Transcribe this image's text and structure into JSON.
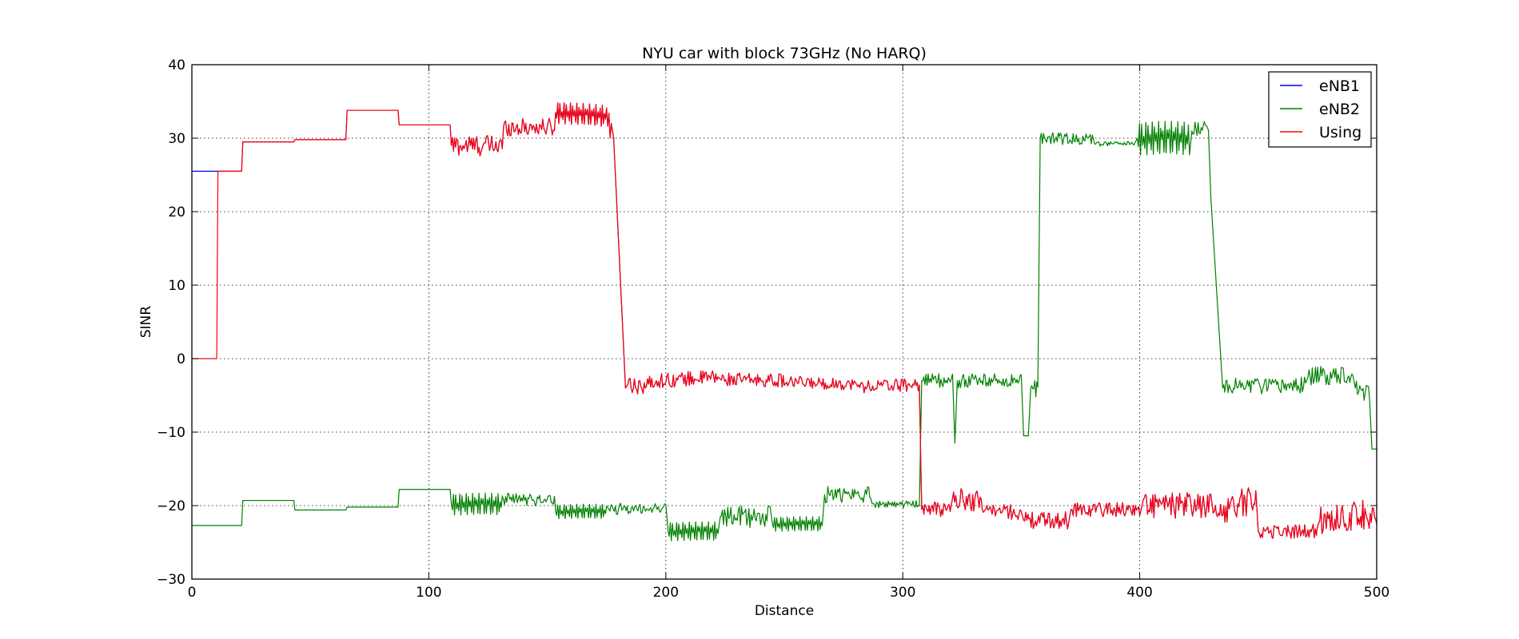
{
  "chart_data": {
    "type": "line",
    "title": "NYU car with block 73GHz (No HARQ)",
    "xlabel": "Distance",
    "ylabel": "SINR",
    "xlim": [
      0,
      500
    ],
    "ylim": [
      -30,
      40
    ],
    "xticks": [
      0,
      100,
      200,
      300,
      400,
      500
    ],
    "yticks": [
      -30,
      -20,
      -10,
      0,
      10,
      20,
      30,
      40
    ],
    "grid": true,
    "legend_position": "top-right",
    "series": [
      {
        "name": "eNB1",
        "color": "#0000ff",
        "segments": [
          [
            0,
            25.5,
            "flat",
            0
          ],
          [
            10.5,
            25.5,
            "flat",
            0
          ],
          [
            21,
            25.5,
            "flat",
            0
          ],
          [
            21.5,
            29.5,
            "flat",
            0
          ],
          [
            43,
            29.5,
            "flat",
            0
          ],
          [
            43.5,
            29.8,
            "flat",
            0
          ],
          [
            65,
            29.8,
            "flat",
            0
          ],
          [
            65.5,
            33.8,
            "flat",
            0
          ],
          [
            87,
            33.8,
            "flat",
            0
          ],
          [
            87.5,
            31.8,
            "flat",
            0
          ],
          [
            109,
            31.8,
            "flat",
            0
          ],
          [
            109.5,
            29,
            "noise",
            1.5
          ],
          [
            131,
            29,
            "noise",
            1.5
          ],
          [
            131.5,
            31.5,
            "noise",
            1.2
          ],
          [
            153,
            31.5,
            "noise",
            1.2
          ],
          [
            153.5,
            33.5,
            "osc",
            1.5
          ],
          [
            175,
            33,
            "osc",
            1.5
          ],
          [
            177,
            31,
            "noise",
            1.2
          ],
          [
            178,
            30,
            "flat",
            0
          ],
          [
            183,
            -4,
            "flat",
            0
          ],
          [
            184,
            -3.5,
            "noise",
            1.3
          ],
          [
            195,
            -3.5,
            "noise",
            1.3
          ],
          [
            196,
            -3,
            "noise",
            1.0
          ],
          [
            222,
            -2.5,
            "noise",
            1.0
          ],
          [
            223,
            -2.8,
            "noise",
            0.9
          ],
          [
            250,
            -3,
            "noise",
            0.9
          ],
          [
            251,
            -3.2,
            "noise",
            0.8
          ],
          [
            280,
            -3.5,
            "noise",
            0.8
          ],
          [
            281,
            -3.8,
            "noise",
            0.9
          ],
          [
            307,
            -3.5,
            "noise",
            0.9
          ],
          [
            308,
            -20.5,
            "noise",
            1.0
          ],
          [
            320,
            -20.5,
            "noise",
            1.0
          ],
          [
            321,
            -19,
            "noise",
            1.5
          ],
          [
            334,
            -19.5,
            "noise",
            1.2
          ],
          [
            335,
            -20.5,
            "noise",
            1.0
          ],
          [
            350,
            -21,
            "noise",
            1.0
          ],
          [
            351,
            -22,
            "noise",
            1.2
          ],
          [
            370,
            -22,
            "noise",
            1.2
          ],
          [
            371,
            -20.5,
            "noise",
            1.0
          ],
          [
            400,
            -20.5,
            "noise",
            1.0
          ],
          [
            401,
            -20,
            "noise",
            1.8
          ],
          [
            430,
            -20,
            "noise",
            1.5
          ],
          [
            431,
            -21,
            "noise",
            2.0
          ],
          [
            449,
            -19,
            "noise",
            2.0
          ],
          [
            450,
            -23.5,
            "noise",
            1.0
          ],
          [
            475,
            -23.5,
            "noise",
            1.0
          ],
          [
            476,
            -22,
            "noise",
            2.0
          ],
          [
            500,
            -21,
            "noise",
            1.2
          ]
        ]
      },
      {
        "name": "eNB2",
        "color": "#008000",
        "segments": [
          [
            0,
            -22.7,
            "flat",
            0
          ],
          [
            21,
            -22.7,
            "flat",
            0
          ],
          [
            21.5,
            -19.3,
            "flat",
            0
          ],
          [
            43,
            -19.3,
            "flat",
            0
          ],
          [
            43.5,
            -20.6,
            "flat",
            0
          ],
          [
            65,
            -20.6,
            "flat",
            0
          ],
          [
            65.5,
            -20.2,
            "flat",
            0
          ],
          [
            87,
            -20.2,
            "flat",
            0
          ],
          [
            87.5,
            -17.8,
            "flat",
            0
          ],
          [
            109,
            -17.8,
            "flat",
            0
          ],
          [
            109.5,
            -19.8,
            "osc",
            1.5
          ],
          [
            131,
            -19.8,
            "osc",
            1.5
          ],
          [
            131.5,
            -19.2,
            "noise",
            0.9
          ],
          [
            153,
            -19.2,
            "noise",
            0.9
          ],
          [
            153.5,
            -20.8,
            "osc",
            1.0
          ],
          [
            175,
            -20.8,
            "osc",
            1.0
          ],
          [
            176,
            -20.5,
            "noise",
            0.8
          ],
          [
            200,
            -20.3,
            "noise",
            0.7
          ],
          [
            201,
            -23.5,
            "osc",
            1.3
          ],
          [
            222,
            -23.5,
            "osc",
            1.3
          ],
          [
            223,
            -21.5,
            "noise",
            1.5
          ],
          [
            244,
            -21.5,
            "noise",
            1.5
          ],
          [
            245,
            -22.5,
            "osc",
            1.0
          ],
          [
            266,
            -22.5,
            "osc",
            1.0
          ],
          [
            267,
            -18.5,
            "noise",
            1.2
          ],
          [
            287,
            -18.5,
            "noise",
            1.2
          ],
          [
            288,
            -19.8,
            "noise",
            0.5
          ],
          [
            307,
            -19.8,
            "noise",
            0.6
          ],
          [
            308,
            -3,
            "noise",
            1.0
          ],
          [
            321,
            -3,
            "noise",
            1.0
          ],
          [
            322,
            -11.5,
            "flat",
            0
          ],
          [
            323,
            -3,
            "noise",
            1.0
          ],
          [
            350,
            -3,
            "noise",
            1.0
          ],
          [
            351,
            -10.5,
            "flat",
            0
          ],
          [
            353,
            -10.5,
            "flat",
            0
          ],
          [
            354,
            -4,
            "noise",
            1.2
          ],
          [
            357,
            -4,
            "noise",
            1.2
          ],
          [
            358,
            30,
            "noise",
            0.8
          ],
          [
            380,
            29.8,
            "noise",
            0.6
          ],
          [
            381,
            29.2,
            "noise",
            0.3
          ],
          [
            398,
            29.3,
            "noise",
            0.3
          ],
          [
            399,
            30,
            "osc",
            2.3
          ],
          [
            421,
            30,
            "osc",
            2.0
          ],
          [
            422,
            31,
            "noise",
            1.0
          ],
          [
            429,
            32,
            "noise",
            1.0
          ],
          [
            430,
            22,
            "flat",
            0
          ],
          [
            435,
            -4,
            "noise",
            1.2
          ],
          [
            450,
            -3.5,
            "noise",
            1.2
          ],
          [
            451,
            -4,
            "noise",
            1.2
          ],
          [
            470,
            -3.5,
            "noise",
            1.5
          ],
          [
            471,
            -2.5,
            "noise",
            1.3
          ],
          [
            490,
            -2,
            "noise",
            1.3
          ],
          [
            491,
            -4,
            "noise",
            1.5
          ],
          [
            497,
            -4.5,
            "noise",
            1.5
          ],
          [
            498,
            -12.3,
            "flat",
            0
          ],
          [
            500,
            -12.3,
            "flat",
            0
          ]
        ]
      },
      {
        "name": "Using",
        "color": "#ff0000",
        "segments": [
          [
            0,
            0,
            "flat",
            0
          ],
          [
            10.5,
            0,
            "flat",
            0
          ],
          [
            11,
            25.5,
            "flat",
            0
          ],
          [
            21,
            25.5,
            "flat",
            0
          ],
          [
            21.5,
            29.5,
            "flat",
            0
          ],
          [
            43,
            29.5,
            "flat",
            0
          ],
          [
            43.5,
            29.8,
            "flat",
            0
          ],
          [
            65,
            29.8,
            "flat",
            0
          ],
          [
            65.5,
            33.8,
            "flat",
            0
          ],
          [
            87,
            33.8,
            "flat",
            0
          ],
          [
            87.5,
            31.8,
            "flat",
            0
          ],
          [
            109,
            31.8,
            "flat",
            0
          ],
          [
            109.5,
            29,
            "noise",
            1.5
          ],
          [
            131,
            29,
            "noise",
            1.5
          ],
          [
            131.5,
            31.5,
            "noise",
            1.2
          ],
          [
            153,
            31.5,
            "noise",
            1.2
          ],
          [
            153.5,
            33.5,
            "osc",
            1.5
          ],
          [
            175,
            33,
            "osc",
            1.5
          ],
          [
            177,
            31,
            "noise",
            1.2
          ],
          [
            178,
            30,
            "flat",
            0
          ],
          [
            183,
            -4,
            "flat",
            0
          ],
          [
            184,
            -3.5,
            "noise",
            1.3
          ],
          [
            195,
            -3.5,
            "noise",
            1.3
          ],
          [
            196,
            -3,
            "noise",
            1.0
          ],
          [
            222,
            -2.5,
            "noise",
            1.0
          ],
          [
            223,
            -2.8,
            "noise",
            0.9
          ],
          [
            250,
            -3,
            "noise",
            0.9
          ],
          [
            251,
            -3.2,
            "noise",
            0.8
          ],
          [
            280,
            -3.5,
            "noise",
            0.8
          ],
          [
            281,
            -3.8,
            "noise",
            0.9
          ],
          [
            307,
            -3.5,
            "noise",
            0.9
          ],
          [
            308,
            -20.5,
            "noise",
            1.0
          ],
          [
            320,
            -20.5,
            "noise",
            1.0
          ],
          [
            321,
            -19,
            "noise",
            1.5
          ],
          [
            334,
            -19.5,
            "noise",
            1.2
          ],
          [
            335,
            -20.5,
            "noise",
            1.0
          ],
          [
            350,
            -21,
            "noise",
            1.0
          ],
          [
            351,
            -22,
            "noise",
            1.2
          ],
          [
            370,
            -22,
            "noise",
            1.2
          ],
          [
            371,
            -20.5,
            "noise",
            1.0
          ],
          [
            400,
            -20.5,
            "noise",
            1.0
          ],
          [
            401,
            -20,
            "noise",
            1.8
          ],
          [
            430,
            -20,
            "noise",
            1.5
          ],
          [
            431,
            -21,
            "noise",
            2.0
          ],
          [
            449,
            -19,
            "noise",
            2.0
          ],
          [
            450,
            -23.5,
            "noise",
            1.0
          ],
          [
            475,
            -23.5,
            "noise",
            1.0
          ],
          [
            476,
            -22,
            "noise",
            2.0
          ],
          [
            500,
            -21,
            "noise",
            1.2
          ]
        ]
      }
    ]
  }
}
